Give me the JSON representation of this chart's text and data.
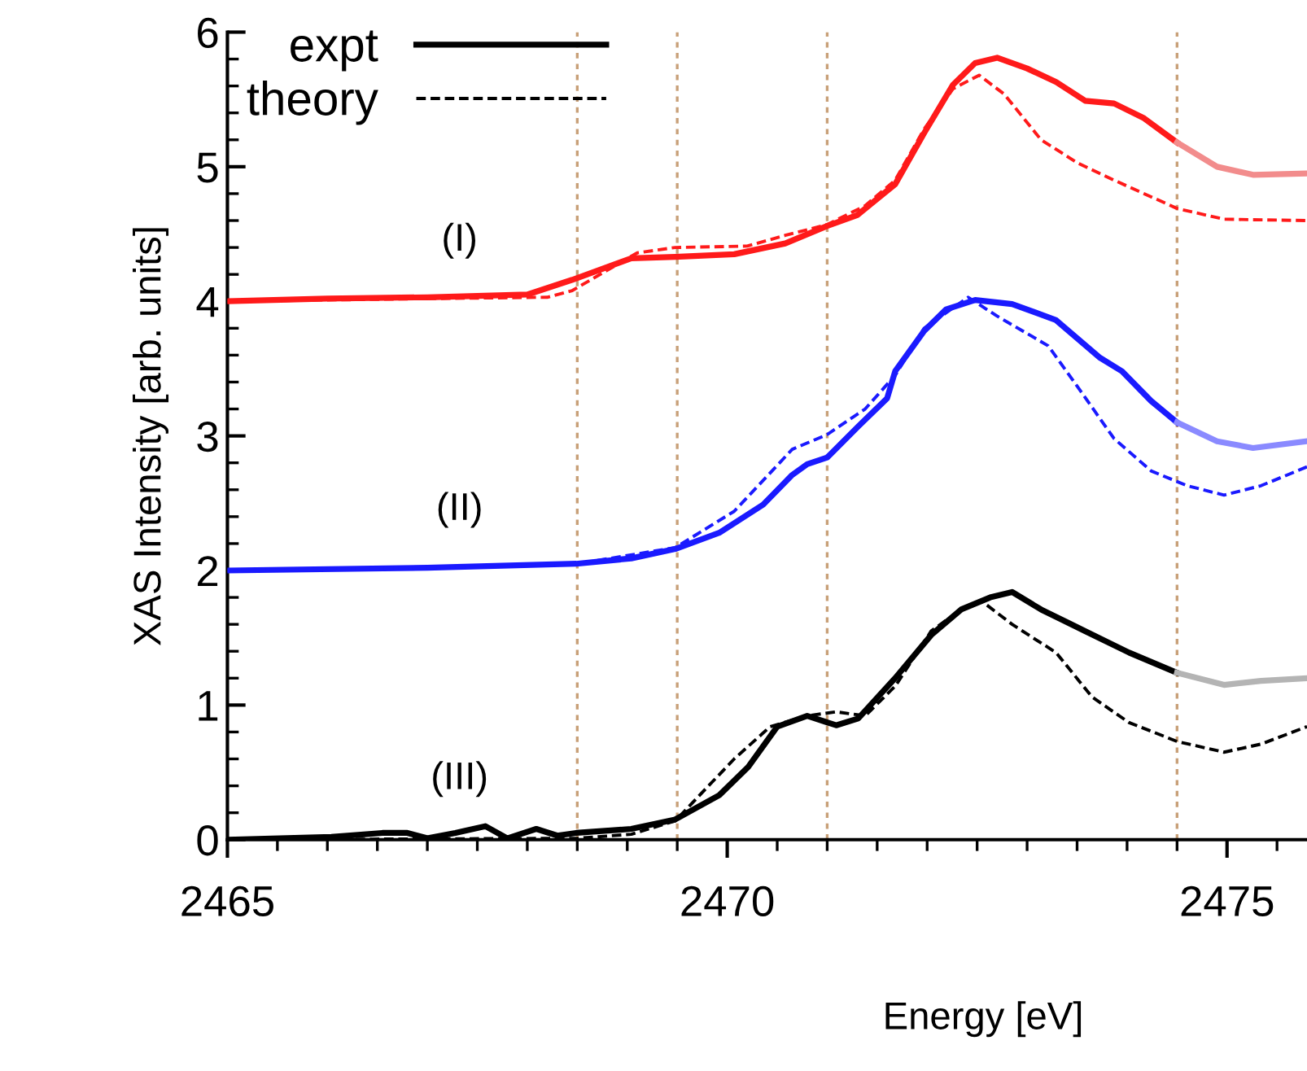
{
  "chart_data": {
    "type": "line",
    "xlabel": "Energy [eV]",
    "ylabel": "XAS Intensity [arb. units]",
    "xlim": [
      2465,
      2475.8
    ],
    "ylim": [
      0,
      6
    ],
    "xticks": [
      2465,
      2470,
      2475
    ],
    "yticks": [
      0,
      1,
      2,
      3,
      4,
      5,
      6
    ],
    "grid": false,
    "legend": "top left",
    "marker": "none",
    "series": [
      {
        "color": "#ff1a1a",
        "line_style": "solid",
        "x": [
          2465,
          2466,
          2467,
          2468,
          2468.45,
          2469.04,
          2469.48,
          2470.07,
          2470.58,
          2471.0,
          2471.3,
          2471.68,
          2471.97,
          2472.26,
          2472.48,
          2472.7,
          2473.0,
          2473.29,
          2473.58,
          2473.87,
          2474.17,
          2474.5
        ],
        "values": [
          4.0,
          4.02,
          4.03,
          4.05,
          4.16,
          4.32,
          4.33,
          4.35,
          4.43,
          4.56,
          4.64,
          4.87,
          5.25,
          5.61,
          5.77,
          5.81,
          5.73,
          5.63,
          5.49,
          5.47,
          5.36,
          5.18
        ]
      },
      {
        "color": "#f28c8c",
        "line_style": "solid",
        "x": [
          2474.5,
          2474.9,
          2475.26,
          2475.8
        ],
        "values": [
          5.18,
          5.0,
          4.94,
          4.95
        ]
      },
      {
        "color": "#ff1a1a",
        "line_style": "dashed",
        "x": [
          2465,
          2467,
          2468.2,
          2468.45,
          2469.1,
          2469.48,
          2470.2,
          2470.58,
          2471.0,
          2471.38,
          2471.68,
          2471.97,
          2472.26,
          2472.52,
          2472.77,
          2473.14,
          2473.5,
          2473.87,
          2474.5,
          2474.97,
          2475.8
        ],
        "values": [
          4.0,
          4.02,
          4.03,
          4.08,
          4.36,
          4.4,
          4.41,
          4.49,
          4.57,
          4.71,
          4.9,
          5.28,
          5.58,
          5.68,
          5.54,
          5.2,
          5.03,
          4.9,
          4.69,
          4.61,
          4.6
        ]
      },
      {
        "color": "#1a1aff",
        "line_style": "solid",
        "x": [
          2465,
          2467,
          2468.49,
          2469.04,
          2469.48,
          2469.92,
          2470.36,
          2470.65,
          2470.8,
          2471.0,
          2471.31,
          2471.6,
          2471.68,
          2471.97,
          2472.19,
          2472.48,
          2472.85,
          2473.29,
          2473.73,
          2473.95,
          2474.24,
          2474.5
        ],
        "values": [
          2.0,
          2.02,
          2.05,
          2.09,
          2.16,
          2.28,
          2.49,
          2.71,
          2.79,
          2.84,
          3.07,
          3.28,
          3.48,
          3.78,
          3.94,
          4.01,
          3.98,
          3.86,
          3.58,
          3.48,
          3.26,
          3.1
        ]
      },
      {
        "color": "#8a8aff",
        "line_style": "solid",
        "x": [
          2474.5,
          2474.9,
          2475.26,
          2475.8
        ],
        "values": [
          3.1,
          2.96,
          2.91,
          2.96
        ]
      },
      {
        "color": "#1a1aff",
        "line_style": "dashed",
        "x": [
          2465,
          2467,
          2468.5,
          2469.48,
          2470.07,
          2470.65,
          2471.0,
          2471.38,
          2471.68,
          2471.97,
          2472.41,
          2472.7,
          2473.21,
          2473.5,
          2473.87,
          2474.24,
          2474.6,
          2474.97,
          2475.34,
          2475.8
        ],
        "values": [
          2.0,
          2.02,
          2.05,
          2.17,
          2.44,
          2.9,
          3.01,
          3.2,
          3.45,
          3.8,
          4.03,
          3.89,
          3.67,
          3.37,
          2.98,
          2.74,
          2.63,
          2.56,
          2.63,
          2.77
        ]
      },
      {
        "name": "expt",
        "color": "#000000",
        "line_style": "solid",
        "x": [
          2465,
          2466.04,
          2466.55,
          2466.8,
          2467.0,
          2467.28,
          2467.58,
          2467.8,
          2468.09,
          2468.3,
          2468.49,
          2469.04,
          2469.48,
          2469.92,
          2470.21,
          2470.5,
          2470.8,
          2471.09,
          2471.31,
          2471.68,
          2472.04,
          2472.34,
          2472.63,
          2472.85,
          2473.14,
          2473.58,
          2474.02,
          2474.5
        ],
        "values": [
          0.0,
          0.02,
          0.05,
          0.05,
          0.01,
          0.05,
          0.1,
          0.01,
          0.08,
          0.03,
          0.05,
          0.08,
          0.15,
          0.33,
          0.54,
          0.84,
          0.92,
          0.85,
          0.9,
          1.2,
          1.52,
          1.71,
          1.8,
          1.84,
          1.71,
          1.55,
          1.39,
          1.24
        ]
      },
      {
        "color": "#b4b4b4",
        "line_style": "solid",
        "x": [
          2474.5,
          2474.97,
          2475.34,
          2475.8
        ],
        "values": [
          1.24,
          1.15,
          1.18,
          1.2
        ]
      },
      {
        "name": "theory",
        "color": "#000000",
        "line_style": "dashed",
        "x": [
          2465,
          2468.5,
          2469.04,
          2469.48,
          2470.07,
          2470.43,
          2470.8,
          2471.09,
          2471.38,
          2471.68,
          2472.04,
          2472.34,
          2472.55,
          2472.85,
          2473.29,
          2473.65,
          2474.02,
          2474.5,
          2474.97,
          2475.34,
          2475.8
        ],
        "values": [
          0.0,
          0.01,
          0.04,
          0.14,
          0.6,
          0.84,
          0.92,
          0.95,
          0.92,
          1.14,
          1.55,
          1.71,
          1.77,
          1.6,
          1.39,
          1.06,
          0.87,
          0.73,
          0.65,
          0.71,
          0.84
        ]
      }
    ],
    "ref_lines": [
      {
        "axis": "x",
        "value": 2468.5,
        "color": "#c8a078",
        "line_style": "dotted"
      },
      {
        "axis": "x",
        "value": 2469.5,
        "color": "#c8a078",
        "line_style": "dotted"
      },
      {
        "axis": "x",
        "value": 2471,
        "color": "#c8a078",
        "line_style": "dotted"
      },
      {
        "axis": "x",
        "value": 2474.5,
        "color": "#c8a078",
        "line_style": "dotted"
      }
    ],
    "annotations": [
      "(I)",
      "(II)",
      "(III)"
    ]
  }
}
